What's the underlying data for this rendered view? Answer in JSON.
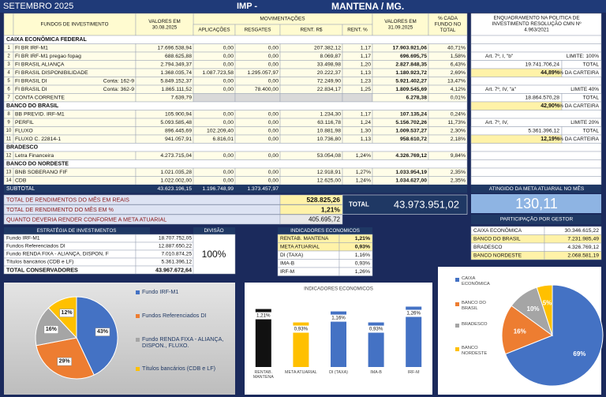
{
  "header": {
    "period": "SETEMBRO 2025",
    "entity": "IMP -",
    "city": "MANTENA / MG."
  },
  "table": {
    "columns": [
      [
        "FUNDOS DE INVESTIMENTO"
      ],
      [
        "VALORES EM",
        "30.08.2025"
      ],
      [
        "APLICAÇÕES"
      ],
      [
        "RESGATES"
      ],
      [
        "RENT. R$"
      ],
      [
        "RENT. %"
      ],
      [
        "VALORES EM",
        "31.09.2025"
      ],
      [
        "% CADA",
        "FUNDO NO",
        "TOTAL"
      ]
    ],
    "group_header": "MOVIMENTAÇÕES",
    "sections": [
      {
        "name": "CAIXA ECONÔMICA FEDERAL",
        "rows": [
          {
            "n": "1",
            "name": "FI BR IRF-M1",
            "cells": [
              "17.696.538,94",
              "0,00",
              "0,00",
              "207.382,12",
              "1,17",
              "17.903.921,06",
              "40,71%"
            ]
          },
          {
            "n": "2",
            "name": "FI BR IRF-M1 pregao fopag",
            "cells": [
              "688.625,88",
              "0,00",
              "0,00",
              "8.069,87",
              "1,17",
              "696.695,75",
              "1,58%"
            ]
          },
          {
            "n": "3",
            "name": "FI BRASIL ALIANÇA",
            "cells": [
              "2.794.349,37",
              "0,00",
              "0,00",
              "33.498,98",
              "1,20",
              "2.827.848,35",
              "6,43%"
            ]
          },
          {
            "n": "4",
            "name": "FI BRASIL DISPONIBILIDADE",
            "cells": [
              "1.368.035,74",
              "1.087.723,58",
              "1.295.057,97",
              "20.222,37",
              "1,13",
              "1.180.923,72",
              "2,69%"
            ]
          },
          {
            "n": "5",
            "name": "FI BRASIL DI",
            "account": "Conta: 162-9",
            "cells": [
              "5.849.152,37",
              "0,00",
              "0,00",
              "72.249,90",
              "1,23",
              "5.921.402,27",
              "13,47%"
            ]
          },
          {
            "n": "6",
            "name": "FI BRASIL DI",
            "account": "Conta: 362-9",
            "cells": [
              "1.865.111,52",
              "0,00",
              "78.400,00",
              "22.834,17",
              "1,25",
              "1.809.545,69",
              "4,12%"
            ]
          },
          {
            "n": "7",
            "name": "CONTA CORRENTE",
            "cells": [
              "7.639,79",
              null,
              null,
              null,
              null,
              "6.278,38",
              "0,01%"
            ]
          }
        ]
      },
      {
        "name": "BANCO DO BRASIL",
        "rows": [
          {
            "n": "8",
            "name": "BB PREVID. IRF-M1",
            "cells": [
              "105.900,94",
              "0,00",
              "0,00",
              "1.234,30",
              "1,17",
              "107.135,24",
              "0,24%"
            ]
          },
          {
            "n": "9",
            "name": "PERFIL",
            "cells": [
              "5.093.585,48",
              "0,00",
              "0,00",
              "63.116,78",
              "1,24",
              "5.156.702,26",
              "11,73%"
            ]
          },
          {
            "n": "10",
            "name": "FLUXO",
            "cells": [
              "896.445,69",
              "102.209,40",
              "0,00",
              "10.881,98",
              "1,30",
              "1.009.537,27",
              "2,30%"
            ]
          },
          {
            "n": "11",
            "name": "FLUXO  C. 22814-1",
            "cells": [
              "941.057,91",
              "6.816,01",
              "0,00",
              "10.736,80",
              "1,13",
              "958.610,72",
              "2,18%"
            ]
          }
        ]
      },
      {
        "name": "BRADESCO",
        "rows": [
          {
            "n": "12",
            "name": "Letra Financeira",
            "cells": [
              "4.273.715,04",
              "0,00",
              "0,00",
              "53.054,08",
              "1,24%",
              "4.326.769,12",
              "9,84%"
            ]
          }
        ]
      },
      {
        "name": "BANCO DO NORDESTE",
        "rows": [
          {
            "n": "13",
            "name": "BNB SOBERANO FIF",
            "cells": [
              "1.021.035,28",
              "0,00",
              "0,00",
              "12.918,91",
              "1,27%",
              "1.033.954,19",
              "2,35%"
            ]
          },
          {
            "n": "14",
            "name": "CDB",
            "cells": [
              "1.022.002,00",
              "0,00",
              "0,00",
              "12.625,00",
              "1,24%",
              "1.034.627,00",
              "2,35%"
            ]
          }
        ]
      }
    ],
    "subtotal": {
      "label": "SUBTOTAL",
      "cells": [
        "43.623.196,15",
        "1.196.748,99",
        "1.373.457,97"
      ]
    }
  },
  "enquadramento": {
    "title": [
      "ENQUADRAMENTO NA POLITICA DE",
      "INVESTIMENTO RESOLUÇÃO CMN Nº",
      "4.963/2021"
    ],
    "groups": [
      {
        "article": "Art. 7º, I, \"b\"",
        "limit": "LIMITE: 100%",
        "total": "19.741.706,24",
        "total_label": "TOTAL",
        "share": "44,89%",
        "share_label": "% DA CARTEIRA"
      },
      {
        "article": "Art. 7º, IV, \"a\"",
        "limit": "LIMITE 40%",
        "total": "18.864.570,28",
        "total_label": "TOTAL",
        "share": "42,90%",
        "share_label": "% DA CARTEIRA"
      },
      {
        "article": "Art. 7º, IV,",
        "limit": "LIMITE 20%",
        "total": "5.361.396,12",
        "total_label": "TOTAL",
        "share": "12,19%",
        "share_label": "% DA CARTEIRA"
      }
    ]
  },
  "totals": {
    "rows": [
      {
        "label": "TOTAL DE RENDIMENTOS DO MÊS EM REAIS",
        "value": "528.825,26"
      },
      {
        "label": "TOTAL DE RENDIMENTO DO MÊS EM %",
        "value": "1,21%"
      },
      {
        "label": "QUANTO DEVERIA RENDER CONFORME A META ATUARIAL",
        "value": "405.695,72"
      }
    ],
    "total_label": "TOTAL",
    "total_value": "43.973.951,02"
  },
  "meta": {
    "label": "ATINGIDO DA META ATUARIAL NO MÊS",
    "value": "130,11"
  },
  "participacao": {
    "title": "PARTICIPAÇÃO POR GESTOR",
    "rows": [
      [
        "CAIXA ECONÔMICA",
        "30.346.615,22"
      ],
      [
        "BANCO DO BRASIL",
        "7.231.985,49"
      ],
      [
        "BRADESCO",
        "4.326.769,12"
      ],
      [
        "BANCO NORDESTE",
        "2.068.581,19"
      ]
    ]
  },
  "estrategia": {
    "header": "ESTRATÉGIA DE INVESTIMENTOS",
    "division_header": "DIVISÃO",
    "rows": [
      [
        "Fundo IRF-M1",
        "18.707.752,05"
      ],
      [
        "Fundos Referenciados DI",
        "12.887.650,22"
      ],
      [
        "Fundo RENDA FIXA - ALIANÇA, DISPON, F",
        "7.010.874,25"
      ],
      [
        "Títulos bancários (CDB e LF)",
        "5.361.396,12"
      ]
    ],
    "total": [
      "TOTAL CONSERVADORES",
      "43.967.672,64"
    ],
    "division": "100%"
  },
  "indicadores": {
    "title": "INDICADORES ECONOMICOS",
    "rows": [
      [
        "RENTAB. MANTENA",
        "1,21%"
      ],
      [
        "META ATUARIAL",
        "0,93%"
      ],
      [
        "DI (TAXA)",
        "1,16%"
      ],
      [
        "IMA-B",
        "0,93%"
      ],
      [
        "IRF-M",
        "1,26%"
      ]
    ]
  },
  "chart_data": [
    {
      "type": "pie",
      "categories": [
        "Fundo IRF-M1",
        "Fundos Referenciados DI",
        "Fundo RENDA FIXA - ALIANÇA, DISPON., FLUXO.",
        "Títulos bancários (CDB e LF)"
      ],
      "values": [
        43,
        29,
        16,
        12
      ],
      "value_labels": [
        "43%",
        "29%",
        "16%",
        "12%"
      ],
      "colors": [
        "#4472c4",
        "#ed7d31",
        "#a5a5a5",
        "#ffc000"
      ]
    },
    {
      "type": "bar",
      "title": "INDICADORES ECONOMICOS",
      "categories": [
        "RENTAB. MANTENA",
        "META ATUARIAL",
        "DI (TAXA)",
        "IMA-B",
        "IRF-M"
      ],
      "values": [
        1.21,
        0.93,
        1.16,
        0.93,
        1.26
      ],
      "value_labels": [
        "1,21%",
        "0,93%",
        "1,16%",
        "0,93%",
        "1,26%"
      ],
      "colors": [
        "#111111",
        "#ffc000",
        "#4472c4",
        "#4472c4",
        "#4472c4"
      ],
      "ylim": [
        0,
        1.4
      ]
    },
    {
      "type": "pie",
      "categories": [
        "CAIXA ECONÔMICA",
        "BANCO DO BRASIL",
        "BRADESCO",
        "BANCO NORDESTE"
      ],
      "values": [
        69,
        16,
        10,
        5
      ],
      "value_labels": [
        "69%",
        "16%",
        "10%",
        "5%"
      ],
      "colors": [
        "#4472c4",
        "#ed7d31",
        "#a5a5a5",
        "#ffc000"
      ]
    }
  ]
}
